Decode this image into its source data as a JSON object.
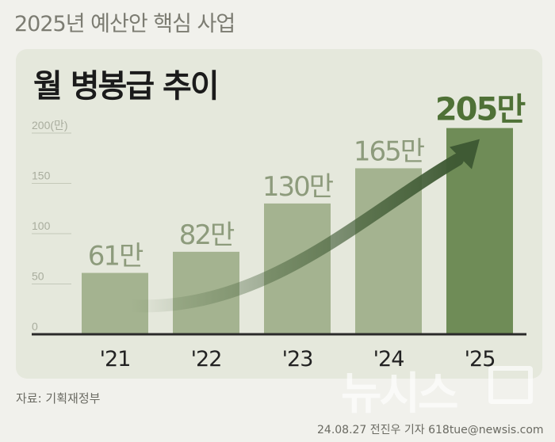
{
  "header": "2025년 예산안 핵심 사업",
  "chart_data": {
    "type": "bar",
    "title": "월 병봉급 추이",
    "categories": [
      "'21",
      "'22",
      "'23",
      "'24",
      "'25"
    ],
    "values": [
      61,
      82,
      130,
      165,
      205
    ],
    "value_labels": [
      "61만",
      "82만",
      "130만",
      "165만",
      "205만"
    ],
    "y_ticks": [
      {
        "value": 0,
        "label": "0"
      },
      {
        "value": 50,
        "label": "50"
      },
      {
        "value": 100,
        "label": "100"
      },
      {
        "value": 150,
        "label": "150"
      },
      {
        "value": 200,
        "label": "200(만)"
      }
    ],
    "ylim": [
      0,
      200
    ],
    "colors": {
      "bar": "#a4b390",
      "highlight_bar": "#6f8c57",
      "highlight_label": "#4f7136",
      "label": "#8d9b7c",
      "arrow": "#3f5a34"
    }
  },
  "source": "자료: 기획재정부",
  "credit": "24.08.27 전진우 기자 618tue@newsis.com",
  "watermark": "뉴시스"
}
